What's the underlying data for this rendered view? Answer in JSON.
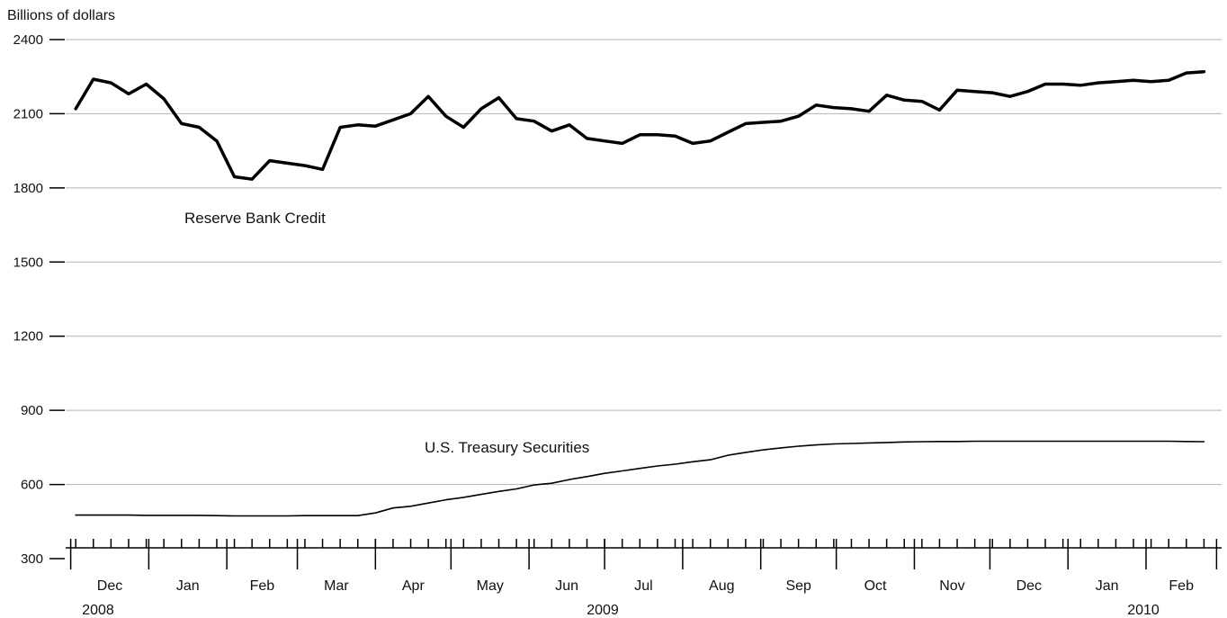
{
  "chart_data": {
    "type": "line",
    "ylabel": "Billions of dollars",
    "ylim": [
      300,
      2400
    ],
    "yticks": [
      300,
      600,
      900,
      1200,
      1500,
      1800,
      2100,
      2400
    ],
    "months": [
      {
        "label": "Dec",
        "year": "2008"
      },
      {
        "label": "Jan",
        "year": "2009"
      },
      {
        "label": "Feb",
        "year": "2009"
      },
      {
        "label": "Mar",
        "year": "2009"
      },
      {
        "label": "Apr",
        "year": "2009"
      },
      {
        "label": "May",
        "year": "2009"
      },
      {
        "label": "Jun",
        "year": "2009"
      },
      {
        "label": "Jul",
        "year": "2009"
      },
      {
        "label": "Aug",
        "year": "2009"
      },
      {
        "label": "Sep",
        "year": "2009"
      },
      {
        "label": "Oct",
        "year": "2009"
      },
      {
        "label": "Nov",
        "year": "2009"
      },
      {
        "label": "Dec",
        "year": "2009"
      },
      {
        "label": "Jan",
        "year": "2010"
      },
      {
        "label": "Feb",
        "year": "2010"
      }
    ],
    "years": [
      "2008",
      "2009",
      "2010"
    ],
    "x": [
      "2008-12-03",
      "2008-12-10",
      "2008-12-17",
      "2008-12-24",
      "2008-12-31",
      "2009-01-07",
      "2009-01-14",
      "2009-01-21",
      "2009-01-28",
      "2009-02-04",
      "2009-02-11",
      "2009-02-18",
      "2009-02-25",
      "2009-03-04",
      "2009-03-11",
      "2009-03-18",
      "2009-03-25",
      "2009-04-01",
      "2009-04-08",
      "2009-04-15",
      "2009-04-22",
      "2009-04-29",
      "2009-05-06",
      "2009-05-13",
      "2009-05-20",
      "2009-05-27",
      "2009-06-03",
      "2009-06-10",
      "2009-06-17",
      "2009-06-24",
      "2009-07-01",
      "2009-07-08",
      "2009-07-15",
      "2009-07-22",
      "2009-07-29",
      "2009-08-05",
      "2009-08-12",
      "2009-08-19",
      "2009-08-26",
      "2009-09-02",
      "2009-09-09",
      "2009-09-16",
      "2009-09-23",
      "2009-09-30",
      "2009-10-07",
      "2009-10-14",
      "2009-10-21",
      "2009-10-28",
      "2009-11-04",
      "2009-11-11",
      "2009-11-18",
      "2009-11-25",
      "2009-12-02",
      "2009-12-09",
      "2009-12-16",
      "2009-12-23",
      "2009-12-30",
      "2010-01-06",
      "2010-01-13",
      "2010-01-20",
      "2010-01-27",
      "2010-02-03",
      "2010-02-10",
      "2010-02-17",
      "2010-02-24"
    ],
    "series": [
      {
        "name": "Reserve Bank Credit",
        "color": "#000000",
        "values": [
          2120,
          2240,
          2225,
          2180,
          2220,
          2160,
          2060,
          2045,
          1990,
          1845,
          1835,
          1910,
          1900,
          1890,
          1875,
          2045,
          2055,
          2050,
          2075,
          2100,
          2170,
          2090,
          2045,
          2120,
          2165,
          2080,
          2070,
          2030,
          2055,
          2000,
          1990,
          1980,
          2015,
          2015,
          2010,
          1980,
          1990,
          2025,
          2060,
          2065,
          2070,
          2090,
          2135,
          2125,
          2120,
          2110,
          2175,
          2155,
          2150,
          2115,
          2195,
          2190,
          2185,
          2170,
          2190,
          2220,
          2220,
          2215,
          2225,
          2230,
          2235,
          2230,
          2235,
          2265,
          2270
        ]
      },
      {
        "name": "U.S. Treasury Securities",
        "color": "#000000",
        "values": [
          476,
          476,
          476,
          476,
          475,
          475,
          475,
          475,
          474,
          473,
          473,
          473,
          473,
          474,
          474,
          474,
          474,
          485,
          505,
          512,
          525,
          538,
          548,
          560,
          572,
          582,
          598,
          605,
          620,
          632,
          645,
          655,
          665,
          675,
          682,
          692,
          700,
          718,
          730,
          740,
          748,
          755,
          760,
          764,
          766,
          768,
          770,
          772,
          773,
          774,
          774,
          775,
          775,
          775,
          775,
          775,
          775,
          775,
          775,
          775,
          775,
          775,
          775,
          774,
          773
        ]
      }
    ]
  }
}
